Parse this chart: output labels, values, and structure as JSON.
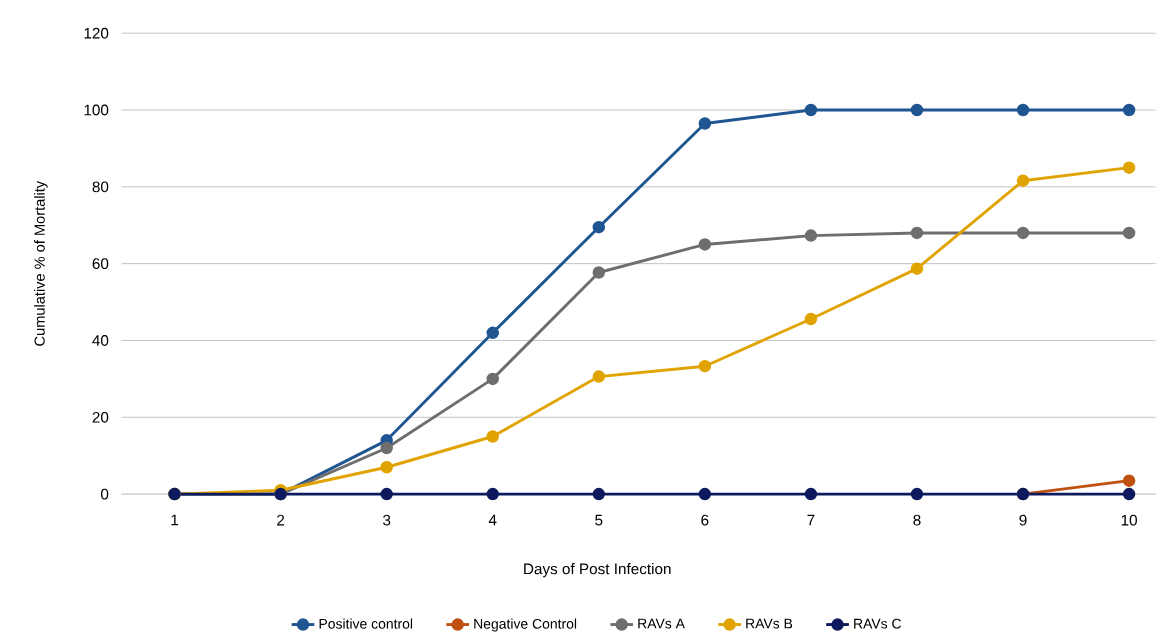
{
  "chart_data": {
    "type": "line",
    "xlabel": "Days of Post Infection",
    "ylabel": "Cumulative % of Mortality",
    "categories": [
      "1",
      "2",
      "3",
      "4",
      "5",
      "6",
      "7",
      "8",
      "9",
      "10"
    ],
    "series": [
      {
        "name": "Positive control",
        "color": "#1f5591",
        "values": [
          0,
          0,
          14,
          42,
          69.5,
          96.5,
          100,
          100,
          100,
          100
        ]
      },
      {
        "name": "Negative Control",
        "color": "#c0500f",
        "values": [
          null,
          null,
          null,
          null,
          null,
          null,
          null,
          null,
          0,
          3.5
        ]
      },
      {
        "name": "RAVs A",
        "color": "#6e6e6e",
        "values": [
          0,
          0,
          12,
          30,
          57.7,
          65,
          67.3,
          68,
          68,
          68
        ]
      },
      {
        "name": "RAVs B",
        "color": "#e0a300",
        "values": [
          0,
          1,
          7,
          15,
          30.6,
          33.3,
          45.6,
          58.7,
          81.6,
          85
        ]
      },
      {
        "name": "RAVs C",
        "color": "#0d1a5e",
        "values": [
          0,
          0,
          0,
          0,
          0,
          0,
          0,
          0,
          0,
          0
        ]
      }
    ],
    "ylim": [
      0,
      120
    ],
    "yticks": [
      0,
      20,
      40,
      60,
      80,
      100,
      120
    ],
    "grid": "y",
    "legend": "bottom",
    "marker": "circle",
    "line_style": "solid"
  }
}
